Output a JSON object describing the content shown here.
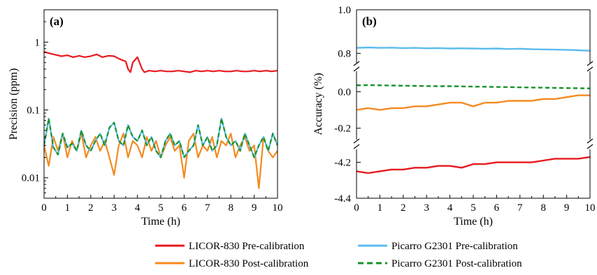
{
  "legend": {
    "items": [
      {
        "label": "LICOR-830 Pre-calibration",
        "color": "#e8191e",
        "dash": false
      },
      {
        "label": "Picarro G2301 Pre-calibration",
        "color": "#5bbcec",
        "dash": false
      },
      {
        "label": "LICOR-830 Post-calibration",
        "color": "#f58a1f",
        "dash": false
      },
      {
        "label": "Picarro G2301 Post-calibration",
        "color": "#16932a",
        "dash": true
      }
    ]
  },
  "chart_data": [
    {
      "panel_label": "(a)",
      "type": "line",
      "xlabel": "Time (h)",
      "ylabel": "Precision (ppm)",
      "xlim": [
        0,
        10
      ],
      "ylim": [
        0.005,
        3
      ],
      "yscale": "log",
      "xticks": [
        "0",
        "1",
        "2",
        "3",
        "4",
        "5",
        "6",
        "7",
        "8",
        "9",
        "10"
      ],
      "yticks": [
        {
          "value": 1,
          "label": "1"
        },
        {
          "value": 0.1,
          "label": "0.1"
        },
        {
          "value": 0.01,
          "label": "0.01"
        }
      ],
      "series": [
        {
          "name": "LICOR-830 Pre-calibration",
          "color": "#e8191e",
          "dash": false,
          "x": [
            0,
            0.25,
            0.5,
            0.75,
            1,
            1.25,
            1.5,
            1.75,
            2,
            2.25,
            2.5,
            2.75,
            3,
            3.25,
            3.5,
            3.6,
            3.7,
            3.8,
            4,
            4.2,
            4.3,
            4.5,
            4.75,
            5,
            5.25,
            5.5,
            5.75,
            6,
            6.25,
            6.5,
            6.75,
            7,
            7.25,
            7.5,
            7.75,
            8,
            8.25,
            8.5,
            8.75,
            9,
            9.25,
            9.5,
            9.75,
            10
          ],
          "y": [
            0.72,
            0.68,
            0.65,
            0.62,
            0.64,
            0.6,
            0.63,
            0.6,
            0.62,
            0.66,
            0.6,
            0.63,
            0.62,
            0.56,
            0.52,
            0.4,
            0.36,
            0.5,
            0.6,
            0.4,
            0.36,
            0.38,
            0.37,
            0.38,
            0.37,
            0.37,
            0.38,
            0.37,
            0.36,
            0.38,
            0.37,
            0.38,
            0.37,
            0.38,
            0.37,
            0.37,
            0.38,
            0.37,
            0.37,
            0.38,
            0.37,
            0.38,
            0.37,
            0.38
          ]
        },
        {
          "name": "LICOR-830 Post-calibration",
          "color": "#f58a1f",
          "dash": false,
          "x": [
            0,
            0.2,
            0.4,
            0.6,
            0.8,
            1,
            1.2,
            1.4,
            1.6,
            1.8,
            2,
            2.2,
            2.4,
            2.6,
            2.8,
            3,
            3.2,
            3.4,
            3.6,
            3.8,
            4,
            4.2,
            4.4,
            4.6,
            4.8,
            5,
            5.2,
            5.4,
            5.6,
            5.8,
            6,
            6.2,
            6.4,
            6.6,
            6.8,
            7,
            7.2,
            7.4,
            7.6,
            7.8,
            8,
            8.2,
            8.4,
            8.6,
            8.8,
            9,
            9.2,
            9.4,
            9.6,
            9.8,
            10
          ],
          "y": [
            0.03,
            0.015,
            0.04,
            0.025,
            0.045,
            0.02,
            0.035,
            0.025,
            0.045,
            0.02,
            0.03,
            0.04,
            0.025,
            0.035,
            0.02,
            0.011,
            0.03,
            0.045,
            0.02,
            0.035,
            0.03,
            0.02,
            0.04,
            0.025,
            0.035,
            0.02,
            0.03,
            0.04,
            0.025,
            0.03,
            0.01,
            0.035,
            0.045,
            0.02,
            0.03,
            0.025,
            0.04,
            0.02,
            0.035,
            0.03,
            0.045,
            0.02,
            0.03,
            0.04,
            0.025,
            0.03,
            0.007,
            0.04,
            0.025,
            0.02,
            0.025
          ]
        },
        {
          "name": "Picarro G2301 Pre-calibration",
          "color": "#5bbcec",
          "dash": false,
          "x": [
            0,
            0.2,
            0.4,
            0.6,
            0.8,
            1,
            1.2,
            1.4,
            1.6,
            1.8,
            2,
            2.2,
            2.4,
            2.6,
            2.8,
            3,
            3.2,
            3.4,
            3.6,
            3.8,
            4,
            4.2,
            4.4,
            4.6,
            4.8,
            5,
            5.2,
            5.4,
            5.6,
            5.8,
            6,
            6.2,
            6.4,
            6.6,
            6.8,
            7,
            7.2,
            7.4,
            7.6,
            7.8,
            8,
            8.2,
            8.4,
            8.6,
            8.8,
            9,
            9.2,
            9.4,
            9.6,
            9.8,
            10
          ],
          "y": [
            0.03,
            0.075,
            0.028,
            0.022,
            0.045,
            0.028,
            0.032,
            0.025,
            0.05,
            0.03,
            0.025,
            0.035,
            0.045,
            0.03,
            0.055,
            0.065,
            0.035,
            0.03,
            0.06,
            0.04,
            0.035,
            0.05,
            0.03,
            0.04,
            0.025,
            0.02,
            0.035,
            0.045,
            0.03,
            0.035,
            0.02,
            0.025,
            0.03,
            0.06,
            0.03,
            0.04,
            0.025,
            0.03,
            0.075,
            0.04,
            0.03,
            0.035,
            0.025,
            0.045,
            0.03,
            0.02,
            0.03,
            0.04,
            0.025,
            0.045,
            0.03
          ]
        },
        {
          "name": "Picarro G2301 Post-calibration",
          "color": "#16932a",
          "dash": true,
          "x": [
            0,
            0.2,
            0.4,
            0.6,
            0.8,
            1,
            1.2,
            1.4,
            1.6,
            1.8,
            2,
            2.2,
            2.4,
            2.6,
            2.8,
            3,
            3.2,
            3.4,
            3.6,
            3.8,
            4,
            4.2,
            4.4,
            4.6,
            4.8,
            5,
            5.2,
            5.4,
            5.6,
            5.8,
            6,
            6.2,
            6.4,
            6.6,
            6.8,
            7,
            7.2,
            7.4,
            7.6,
            7.8,
            8,
            8.2,
            8.4,
            8.6,
            8.8,
            9,
            9.2,
            9.4,
            9.6,
            9.8,
            10
          ],
          "y": [
            0.03,
            0.075,
            0.028,
            0.022,
            0.045,
            0.028,
            0.032,
            0.025,
            0.05,
            0.03,
            0.025,
            0.035,
            0.045,
            0.03,
            0.055,
            0.065,
            0.035,
            0.03,
            0.06,
            0.04,
            0.035,
            0.05,
            0.03,
            0.04,
            0.025,
            0.02,
            0.035,
            0.045,
            0.03,
            0.035,
            0.02,
            0.025,
            0.03,
            0.06,
            0.03,
            0.04,
            0.025,
            0.03,
            0.075,
            0.04,
            0.03,
            0.035,
            0.025,
            0.045,
            0.03,
            0.02,
            0.03,
            0.04,
            0.025,
            0.045,
            0.03
          ]
        }
      ]
    },
    {
      "panel_label": "(b)",
      "type": "line",
      "xlabel": "Time (h)",
      "ylabel": "Accuracy (%)",
      "xlim": [
        0,
        10
      ],
      "broken_axis": true,
      "segments": [
        {
          "ylim": [
            0.75,
            1.0
          ],
          "ticks": [
            {
              "value": 1.0,
              "label": "1.0"
            },
            {
              "value": 0.8,
              "label": "0.8"
            }
          ]
        },
        {
          "ylim": [
            -0.27,
            0.12
          ],
          "ticks": [
            {
              "value": 0.0,
              "label": "0.0"
            },
            {
              "value": -0.2,
              "label": "-0.2"
            }
          ]
        },
        {
          "ylim": [
            -4.4,
            -4.12
          ],
          "ticks": [
            {
              "value": -4.2,
              "label": "-4.2"
            },
            {
              "value": -4.4,
              "label": "-4.4"
            }
          ]
        }
      ],
      "xticks": [
        "0",
        "1",
        "2",
        "3",
        "4",
        "5",
        "6",
        "7",
        "8",
        "9",
        "10"
      ],
      "series": [
        {
          "name": "Picarro G2301 Pre-calibration",
          "color": "#5bbcec",
          "dash": false,
          "x": [
            0,
            0.5,
            1,
            1.5,
            2,
            2.5,
            3,
            3.5,
            4,
            4.5,
            5,
            5.5,
            6,
            6.5,
            7,
            7.5,
            8,
            8.5,
            9,
            9.5,
            10
          ],
          "y": [
            0.825,
            0.827,
            0.825,
            0.826,
            0.824,
            0.825,
            0.823,
            0.824,
            0.822,
            0.823,
            0.822,
            0.821,
            0.822,
            0.82,
            0.821,
            0.819,
            0.818,
            0.817,
            0.816,
            0.814,
            0.812
          ]
        },
        {
          "name": "Picarro G2301 Post-calibration",
          "color": "#16932a",
          "dash": true,
          "x": [
            0,
            0.5,
            1,
            1.5,
            2,
            2.5,
            3,
            3.5,
            4,
            4.5,
            5,
            5.5,
            6,
            6.5,
            7,
            7.5,
            8,
            8.5,
            9,
            9.5,
            10
          ],
          "y": [
            0.035,
            0.036,
            0.035,
            0.034,
            0.033,
            0.032,
            0.031,
            0.03,
            0.03,
            0.029,
            0.028,
            0.027,
            0.026,
            0.025,
            0.024,
            0.023,
            0.022,
            0.021,
            0.02,
            0.019,
            0.018
          ]
        },
        {
          "name": "LICOR-830 Post-calibration",
          "color": "#f58a1f",
          "dash": false,
          "x": [
            0,
            0.5,
            1,
            1.5,
            2,
            2.5,
            3,
            3.5,
            4,
            4.5,
            5,
            5.5,
            6,
            6.5,
            7,
            7.5,
            8,
            8.5,
            9,
            9.5,
            10
          ],
          "y": [
            -0.1,
            -0.09,
            -0.1,
            -0.09,
            -0.09,
            -0.08,
            -0.08,
            -0.07,
            -0.06,
            -0.06,
            -0.08,
            -0.06,
            -0.06,
            -0.05,
            -0.05,
            -0.05,
            -0.04,
            -0.04,
            -0.03,
            -0.02,
            -0.02
          ]
        },
        {
          "name": "LICOR-830 Pre-calibration",
          "color": "#e8191e",
          "dash": false,
          "x": [
            0,
            0.5,
            1,
            1.5,
            2,
            2.5,
            3,
            3.5,
            4,
            4.5,
            5,
            5.5,
            6,
            6.5,
            7,
            7.5,
            8,
            8.5,
            9,
            9.5,
            10
          ],
          "y": [
            -4.25,
            -4.26,
            -4.25,
            -4.24,
            -4.24,
            -4.23,
            -4.23,
            -4.22,
            -4.22,
            -4.23,
            -4.21,
            -4.21,
            -4.2,
            -4.2,
            -4.2,
            -4.2,
            -4.19,
            -4.18,
            -4.18,
            -4.18,
            -4.17
          ]
        }
      ]
    }
  ]
}
